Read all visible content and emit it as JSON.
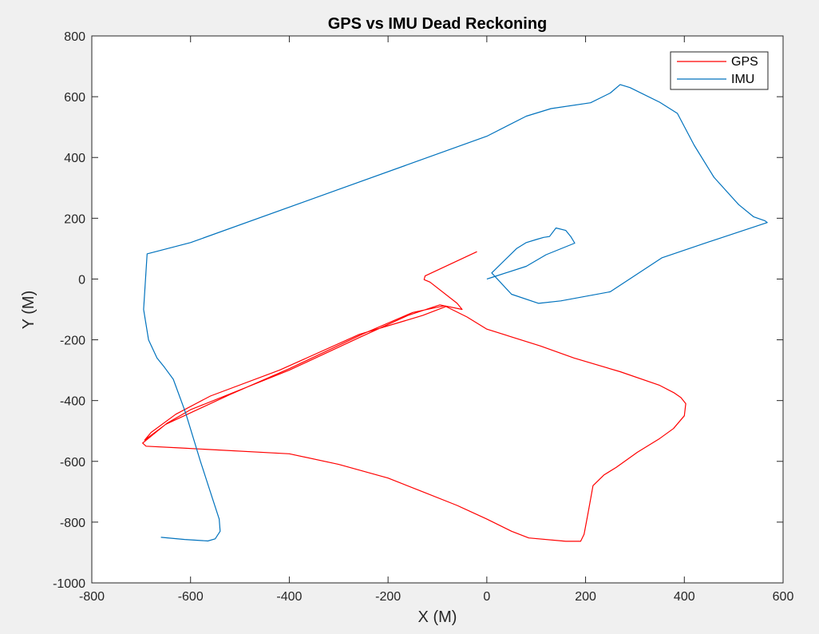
{
  "chart_data": {
    "type": "line",
    "title": "GPS vs IMU Dead Reckoning",
    "xlabel": "X (M)",
    "ylabel": "Y (M)",
    "xlim": [
      -800,
      600
    ],
    "ylim": [
      -1000,
      800
    ],
    "xticks": [
      -800,
      -600,
      -400,
      -200,
      0,
      200,
      400,
      600
    ],
    "yticks": [
      -1000,
      -800,
      -600,
      -400,
      -200,
      0,
      200,
      400,
      600,
      800
    ],
    "grid": false,
    "legend": "top-right",
    "series": [
      {
        "name": "GPS",
        "color": "#ff0000",
        "x": [
          -20,
          -125,
          -127,
          -115,
          -60,
          -50,
          -95,
          -160,
          -255,
          -400,
          -600,
          -648,
          -697,
          -690,
          -620,
          -400,
          -300,
          -200,
          -130,
          -60,
          0,
          50,
          85,
          160,
          190,
          197,
          205,
          215,
          237,
          262,
          305,
          350,
          378,
          400,
          403,
          393,
          380,
          350,
          270,
          177,
          108,
          0,
          -40,
          -86,
          -150,
          -250,
          -400,
          -520,
          -650,
          -693,
          -680,
          -630,
          -560,
          -420,
          -258,
          -130,
          -82
        ],
        "y": [
          90,
          10,
          -2,
          -10,
          -80,
          -100,
          -85,
          -120,
          -190,
          -300,
          -430,
          -475,
          -540,
          -550,
          -556,
          -575,
          -610,
          -655,
          -700,
          -745,
          -790,
          -830,
          -852,
          -863,
          -863,
          -840,
          -770,
          -680,
          -645,
          -620,
          -570,
          -525,
          -492,
          -450,
          -410,
          -390,
          -375,
          -350,
          -305,
          -260,
          -220,
          -165,
          -125,
          -88,
          -110,
          -180,
          -295,
          -380,
          -478,
          -530,
          -505,
          -445,
          -385,
          -300,
          -182,
          -120,
          -90
        ]
      },
      {
        "name": "IMU",
        "color": "#0072bd",
        "x": [
          -660,
          -612,
          -565,
          -550,
          -540,
          -542,
          -556,
          -580,
          -610,
          -635,
          -653,
          -668,
          -685,
          -695,
          -688,
          -600,
          -300,
          0,
          80,
          130,
          210,
          250,
          270,
          290,
          350,
          386,
          420,
          460,
          510,
          540,
          563,
          568,
          440,
          355,
          250,
          150,
          105,
          50,
          10,
          60,
          80,
          100,
          115,
          127,
          140,
          160,
          170,
          178,
          120,
          80,
          10,
          0
        ],
        "y": [
          -850,
          -857,
          -862,
          -855,
          -830,
          -790,
          -720,
          -600,
          -440,
          -330,
          -290,
          -260,
          -200,
          -100,
          83,
          120,
          295,
          470,
          536,
          561,
          580,
          612,
          640,
          630,
          582,
          545,
          440,
          335,
          245,
          205,
          192,
          186,
          117,
          70,
          -42,
          -72,
          -80,
          -50,
          20,
          100,
          120,
          130,
          137,
          140,
          168,
          160,
          140,
          118,
          80,
          42,
          5,
          0
        ]
      }
    ]
  }
}
